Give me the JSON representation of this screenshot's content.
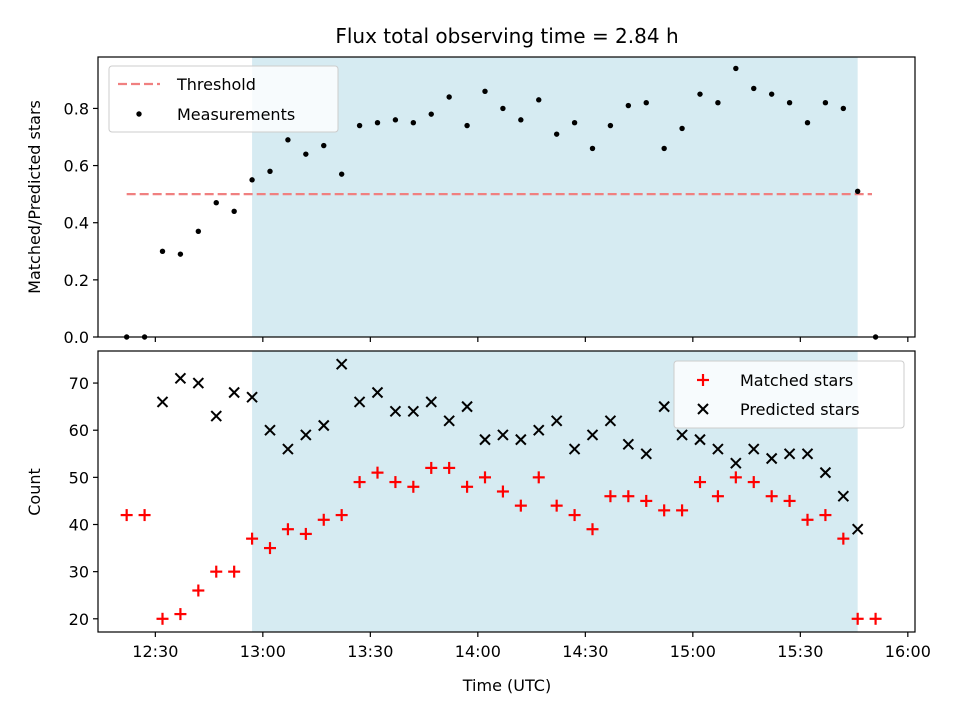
{
  "title": "Flux total observing time = 2.84 h",
  "colors": {
    "band": "#add8e6",
    "threshold": "#f08080",
    "measurement": "#000000",
    "matched": "#ff0000",
    "predicted": "#000000"
  },
  "chart_data": [
    {
      "type": "scatter",
      "ylabel": "Matched/Predicted stars",
      "ylim": [
        0,
        0.98
      ],
      "yticks": [
        "0.0",
        "0.2",
        "0.4",
        "0.6",
        "0.8"
      ],
      "xlim": [
        "12:14",
        "16:02"
      ],
      "observing_window": [
        "12:57",
        "15:46"
      ],
      "threshold": {
        "name": "Threshold",
        "value": 0.5,
        "x_range": [
          "12:22",
          "15:50"
        ]
      },
      "legend_position": "upper-left",
      "series": [
        {
          "name": "Measurements",
          "x": [
            "12:22",
            "12:27",
            "12:32",
            "12:37",
            "12:42",
            "12:47",
            "12:52",
            "12:57",
            "13:02",
            "13:07",
            "13:12",
            "13:17",
            "13:22",
            "13:27",
            "13:32",
            "13:37",
            "13:42",
            "13:47",
            "13:52",
            "13:57",
            "14:02",
            "14:07",
            "14:12",
            "14:17",
            "14:22",
            "14:27",
            "14:32",
            "14:37",
            "14:42",
            "14:47",
            "14:52",
            "14:57",
            "15:02",
            "15:07",
            "15:12",
            "15:17",
            "15:22",
            "15:27",
            "15:32",
            "15:37",
            "15:42",
            "15:46",
            "15:51"
          ],
          "y": [
            0.0,
            0.0,
            0.3,
            0.29,
            0.37,
            0.47,
            0.44,
            0.55,
            0.58,
            0.69,
            0.64,
            0.67,
            0.57,
            0.74,
            0.75,
            0.76,
            0.75,
            0.78,
            0.84,
            0.74,
            0.86,
            0.8,
            0.76,
            0.83,
            0.71,
            0.75,
            0.66,
            0.74,
            0.81,
            0.82,
            0.66,
            0.73,
            0.85,
            0.82,
            0.94,
            0.87,
            0.85,
            0.82,
            0.75,
            0.82,
            0.8,
            0.51,
            0.0
          ]
        }
      ]
    },
    {
      "type": "scatter",
      "xlabel": "Time (UTC)",
      "ylabel": "Count",
      "ylim": [
        17.2,
        76.8
      ],
      "yticks": [
        "20",
        "30",
        "40",
        "50",
        "60",
        "70"
      ],
      "xlim": [
        "12:14",
        "16:02"
      ],
      "xticks": [
        "12:30",
        "13:00",
        "13:30",
        "14:00",
        "14:30",
        "15:00",
        "15:30",
        "16:00"
      ],
      "observing_window": [
        "12:57",
        "15:46"
      ],
      "legend_position": "upper-right",
      "series": [
        {
          "name": "Matched stars",
          "marker": "plus",
          "x": [
            "12:22",
            "12:27",
            "12:32",
            "12:37",
            "12:42",
            "12:47",
            "12:52",
            "12:57",
            "13:02",
            "13:07",
            "13:12",
            "13:17",
            "13:22",
            "13:27",
            "13:32",
            "13:37",
            "13:42",
            "13:47",
            "13:52",
            "13:57",
            "14:02",
            "14:07",
            "14:12",
            "14:17",
            "14:22",
            "14:27",
            "14:32",
            "14:37",
            "14:42",
            "14:47",
            "14:52",
            "14:57",
            "15:02",
            "15:07",
            "15:12",
            "15:17",
            "15:22",
            "15:27",
            "15:32",
            "15:37",
            "15:42",
            "15:46",
            "15:51"
          ],
          "y": [
            42,
            42,
            20,
            21,
            26,
            30,
            30,
            37,
            35,
            39,
            38,
            41,
            42,
            49,
            51,
            49,
            48,
            52,
            52,
            48,
            50,
            47,
            44,
            50,
            44,
            42,
            39,
            46,
            46,
            45,
            43,
            43,
            49,
            46,
            50,
            49,
            46,
            45,
            41,
            42,
            37,
            20,
            20
          ]
        },
        {
          "name": "Predicted stars",
          "marker": "x",
          "x": [
            "12:32",
            "12:37",
            "12:42",
            "12:47",
            "12:52",
            "12:57",
            "13:02",
            "13:07",
            "13:12",
            "13:17",
            "13:22",
            "13:27",
            "13:32",
            "13:37",
            "13:42",
            "13:47",
            "13:52",
            "13:57",
            "14:02",
            "14:07",
            "14:12",
            "14:17",
            "14:22",
            "14:27",
            "14:32",
            "14:37",
            "14:42",
            "14:47",
            "14:52",
            "14:57",
            "15:02",
            "15:07",
            "15:12",
            "15:17",
            "15:22",
            "15:27",
            "15:32",
            "15:37",
            "15:42",
            "15:46"
          ],
          "y": [
            66,
            71,
            70,
            63,
            68,
            67,
            60,
            56,
            59,
            61,
            74,
            66,
            68,
            64,
            64,
            66,
            62,
            65,
            58,
            59,
            58,
            60,
            62,
            56,
            59,
            62,
            57,
            55,
            65,
            59,
            58,
            56,
            53,
            56,
            54,
            55,
            55,
            51,
            46,
            39
          ]
        }
      ]
    }
  ]
}
